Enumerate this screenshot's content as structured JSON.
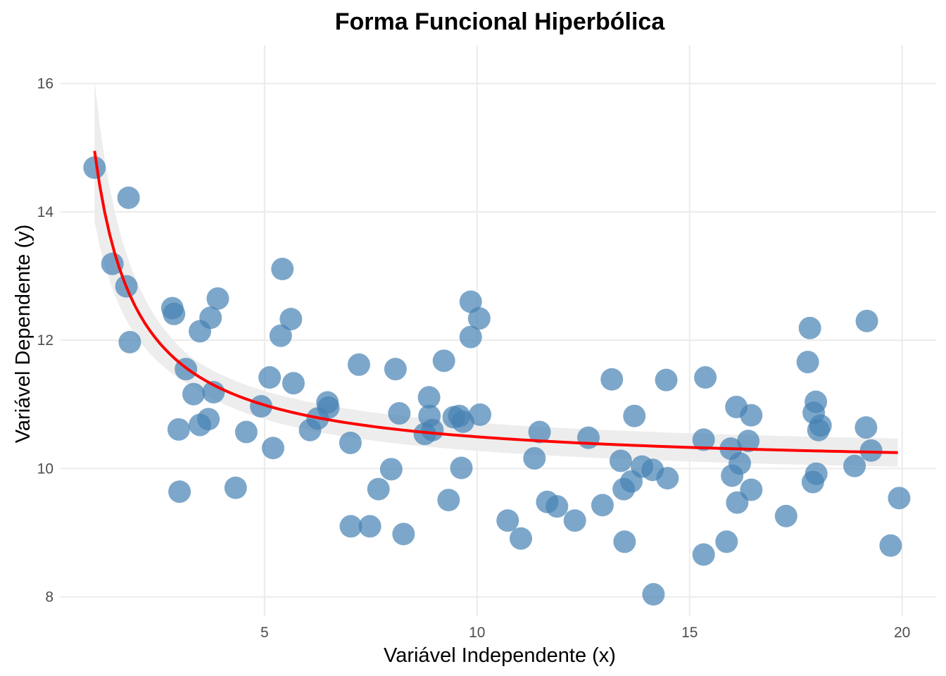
{
  "chart_data": {
    "type": "scatter",
    "title": "Forma Funcional Hiperbólica",
    "xlabel": "Variável Independente (x)",
    "ylabel": "Variável Dependente (y)",
    "xlim": [
      0.2,
      20.8
    ],
    "ylim": [
      7.7,
      16.6
    ],
    "x_ticks": [
      5,
      10,
      15,
      20
    ],
    "y_ticks": [
      8,
      10,
      12,
      14,
      16
    ],
    "grid": true,
    "points": [
      {
        "x": 1.0,
        "y": 14.69
      },
      {
        "x": 1.42,
        "y": 13.19
      },
      {
        "x": 1.8,
        "y": 14.22
      },
      {
        "x": 1.75,
        "y": 12.84
      },
      {
        "x": 1.83,
        "y": 11.97
      },
      {
        "x": 2.83,
        "y": 12.5
      },
      {
        "x": 2.87,
        "y": 12.41
      },
      {
        "x": 3.48,
        "y": 12.14
      },
      {
        "x": 3.73,
        "y": 12.35
      },
      {
        "x": 3.9,
        "y": 12.65
      },
      {
        "x": 3.15,
        "y": 11.55
      },
      {
        "x": 3.33,
        "y": 11.16
      },
      {
        "x": 3.8,
        "y": 11.19
      },
      {
        "x": 2.98,
        "y": 10.61
      },
      {
        "x": 3.48,
        "y": 10.68
      },
      {
        "x": 3.68,
        "y": 10.77
      },
      {
        "x": 3.0,
        "y": 9.64
      },
      {
        "x": 4.32,
        "y": 9.7
      },
      {
        "x": 4.57,
        "y": 10.57
      },
      {
        "x": 4.92,
        "y": 10.97
      },
      {
        "x": 5.12,
        "y": 11.42
      },
      {
        "x": 5.2,
        "y": 10.32
      },
      {
        "x": 5.38,
        "y": 12.07
      },
      {
        "x": 5.42,
        "y": 13.11
      },
      {
        "x": 5.62,
        "y": 12.33
      },
      {
        "x": 5.68,
        "y": 11.33
      },
      {
        "x": 6.07,
        "y": 10.6
      },
      {
        "x": 6.25,
        "y": 10.78
      },
      {
        "x": 6.48,
        "y": 11.03
      },
      {
        "x": 6.5,
        "y": 10.95
      },
      {
        "x": 7.02,
        "y": 10.4
      },
      {
        "x": 7.22,
        "y": 11.62
      },
      {
        "x": 7.03,
        "y": 9.1
      },
      {
        "x": 7.48,
        "y": 9.1
      },
      {
        "x": 7.68,
        "y": 9.68
      },
      {
        "x": 7.98,
        "y": 9.99
      },
      {
        "x": 8.08,
        "y": 11.55
      },
      {
        "x": 8.17,
        "y": 10.86
      },
      {
        "x": 8.27,
        "y": 8.98
      },
      {
        "x": 8.77,
        "y": 10.54
      },
      {
        "x": 8.87,
        "y": 11.11
      },
      {
        "x": 8.88,
        "y": 10.82
      },
      {
        "x": 8.95,
        "y": 10.6
      },
      {
        "x": 9.22,
        "y": 11.68
      },
      {
        "x": 9.33,
        "y": 9.51
      },
      {
        "x": 9.45,
        "y": 10.8
      },
      {
        "x": 9.58,
        "y": 10.82
      },
      {
        "x": 9.67,
        "y": 10.73
      },
      {
        "x": 9.63,
        "y": 10.01
      },
      {
        "x": 9.85,
        "y": 12.6
      },
      {
        "x": 9.85,
        "y": 12.05
      },
      {
        "x": 10.05,
        "y": 12.34
      },
      {
        "x": 10.07,
        "y": 10.84
      },
      {
        "x": 10.72,
        "y": 9.19
      },
      {
        "x": 11.03,
        "y": 8.91
      },
      {
        "x": 11.35,
        "y": 10.16
      },
      {
        "x": 11.47,
        "y": 10.57
      },
      {
        "x": 11.65,
        "y": 9.48
      },
      {
        "x": 11.88,
        "y": 9.41
      },
      {
        "x": 12.3,
        "y": 9.19
      },
      {
        "x": 12.62,
        "y": 10.48
      },
      {
        "x": 12.95,
        "y": 9.43
      },
      {
        "x": 13.17,
        "y": 11.39
      },
      {
        "x": 13.38,
        "y": 10.12
      },
      {
        "x": 13.45,
        "y": 9.68
      },
      {
        "x": 13.47,
        "y": 8.86
      },
      {
        "x": 13.63,
        "y": 9.8
      },
      {
        "x": 13.7,
        "y": 10.82
      },
      {
        "x": 13.88,
        "y": 10.03
      },
      {
        "x": 14.13,
        "y": 9.98
      },
      {
        "x": 14.15,
        "y": 8.04
      },
      {
        "x": 14.45,
        "y": 11.38
      },
      {
        "x": 14.48,
        "y": 9.85
      },
      {
        "x": 15.33,
        "y": 10.45
      },
      {
        "x": 15.37,
        "y": 11.42
      },
      {
        "x": 15.33,
        "y": 8.66
      },
      {
        "x": 15.87,
        "y": 8.86
      },
      {
        "x": 15.97,
        "y": 10.31
      },
      {
        "x": 16.0,
        "y": 9.89
      },
      {
        "x": 16.1,
        "y": 10.96
      },
      {
        "x": 16.12,
        "y": 9.47
      },
      {
        "x": 16.18,
        "y": 10.08
      },
      {
        "x": 16.38,
        "y": 10.43
      },
      {
        "x": 16.45,
        "y": 10.83
      },
      {
        "x": 16.45,
        "y": 9.67
      },
      {
        "x": 17.27,
        "y": 9.26
      },
      {
        "x": 17.78,
        "y": 11.66
      },
      {
        "x": 17.83,
        "y": 12.19
      },
      {
        "x": 17.92,
        "y": 10.87
      },
      {
        "x": 17.97,
        "y": 11.04
      },
      {
        "x": 17.9,
        "y": 9.79
      },
      {
        "x": 17.98,
        "y": 9.92
      },
      {
        "x": 18.03,
        "y": 10.6
      },
      {
        "x": 18.08,
        "y": 10.67
      },
      {
        "x": 18.88,
        "y": 10.04
      },
      {
        "x": 19.17,
        "y": 12.3
      },
      {
        "x": 19.15,
        "y": 10.64
      },
      {
        "x": 19.27,
        "y": 10.28
      },
      {
        "x": 19.73,
        "y": 8.8
      },
      {
        "x": 19.93,
        "y": 9.54
      }
    ],
    "fit": {
      "form": "y = a + b/x",
      "a": 10.0,
      "b": 4.95,
      "x_range": [
        1.0,
        19.9
      ],
      "ci_half_width_at_x1": 1.1,
      "ci_half_width_min": 0.22
    },
    "colors": {
      "points": "#4682b4",
      "fit_line": "#ff0000",
      "confidence_band": "#ebebeb",
      "grid": "#ebebeb",
      "background": "#ffffff"
    }
  }
}
